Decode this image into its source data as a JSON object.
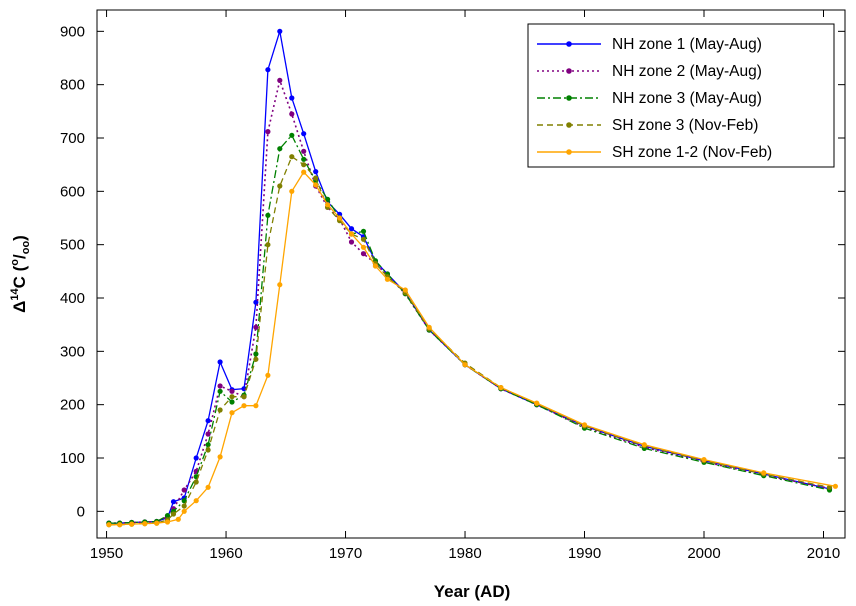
{
  "chart_data": {
    "type": "line",
    "title": "",
    "xlabel": "Year (AD)",
    "ylabel": {
      "delta": "Δ",
      "sup": "14",
      "main": "C (",
      "sup2": "o",
      "slash": "/",
      "sub": "oo",
      "close": ")"
    },
    "xlim": [
      1949.2,
      2011.8
    ],
    "ylim": [
      -50,
      940
    ],
    "xticks": [
      1950,
      1960,
      1970,
      1980,
      1990,
      2000,
      2010
    ],
    "yticks": [
      0,
      100,
      200,
      300,
      400,
      500,
      600,
      700,
      800,
      900
    ],
    "grid": false,
    "legend_position": "top-right",
    "series": [
      {
        "name": "NH zone 1 (May-Aug)",
        "color": "#0000ff",
        "dash": "solid",
        "marker": "#0000ff",
        "points": [
          [
            1950.2,
            -22
          ],
          [
            1951.1,
            -22
          ],
          [
            1952.1,
            -21
          ],
          [
            1953.2,
            -20
          ],
          [
            1954.2,
            -19
          ],
          [
            1955.1,
            -12
          ],
          [
            1955.6,
            18
          ],
          [
            1956.5,
            25
          ],
          [
            1957.5,
            100
          ],
          [
            1958.5,
            170
          ],
          [
            1959.5,
            280
          ],
          [
            1960.5,
            228
          ],
          [
            1961.5,
            230
          ],
          [
            1962.5,
            392
          ],
          [
            1963.5,
            828
          ],
          [
            1964.5,
            900
          ],
          [
            1965.5,
            775
          ],
          [
            1966.5,
            708
          ],
          [
            1967.5,
            637
          ],
          [
            1968.5,
            580
          ],
          [
            1969.5,
            557
          ],
          [
            1970.5,
            530
          ],
          [
            1971.5,
            515
          ],
          [
            1972.5,
            469
          ],
          [
            1973.5,
            445
          ],
          [
            1975,
            410
          ],
          [
            1977,
            340
          ],
          [
            1980,
            275
          ],
          [
            1983,
            230
          ],
          [
            1986,
            200
          ],
          [
            1990,
            160
          ],
          [
            1995,
            122
          ],
          [
            2000,
            95
          ],
          [
            2005,
            70
          ],
          [
            2010.5,
            42
          ]
        ]
      },
      {
        "name": "NH zone 2 (May-Aug)",
        "color": "#800080",
        "dash": "dotted",
        "marker": "#800080",
        "points": [
          [
            1950.2,
            -22
          ],
          [
            1951.1,
            -22
          ],
          [
            1952.1,
            -21
          ],
          [
            1953.2,
            -20
          ],
          [
            1954.2,
            -19
          ],
          [
            1955.1,
            -10
          ],
          [
            1955.6,
            5
          ],
          [
            1956.5,
            40
          ],
          [
            1957.5,
            75
          ],
          [
            1958.5,
            145
          ],
          [
            1959.5,
            235
          ],
          [
            1960.5,
            225
          ],
          [
            1961.5,
            215
          ],
          [
            1962.5,
            345
          ],
          [
            1963.5,
            712
          ],
          [
            1964.5,
            808
          ],
          [
            1965.5,
            745
          ],
          [
            1966.5,
            675
          ],
          [
            1967.5,
            610
          ],
          [
            1968.5,
            570
          ],
          [
            1969.5,
            548
          ],
          [
            1970.5,
            505
          ],
          [
            1971.5,
            483
          ],
          [
            1972.5,
            465
          ],
          [
            1973.5,
            442
          ],
          [
            1975,
            408
          ],
          [
            1977,
            340
          ],
          [
            1980,
            275
          ],
          [
            1983,
            230
          ],
          [
            1986,
            200
          ],
          [
            1990,
            158
          ],
          [
            1995,
            120
          ],
          [
            2000,
            93
          ],
          [
            2005,
            68
          ],
          [
            2010.5,
            43
          ]
        ]
      },
      {
        "name": "NH zone 3 (May-Aug)",
        "color": "#008000",
        "dash": "dashdot",
        "marker": "#008000",
        "points": [
          [
            1950.2,
            -22
          ],
          [
            1951.1,
            -22
          ],
          [
            1952.1,
            -21
          ],
          [
            1953.2,
            -20
          ],
          [
            1954.2,
            -19
          ],
          [
            1955.1,
            -8
          ],
          [
            1955.6,
            0
          ],
          [
            1956.5,
            20
          ],
          [
            1957.5,
            65
          ],
          [
            1958.5,
            125
          ],
          [
            1959.5,
            225
          ],
          [
            1960.5,
            205
          ],
          [
            1961.5,
            218
          ],
          [
            1962.5,
            295
          ],
          [
            1963.5,
            555
          ],
          [
            1964.5,
            680
          ],
          [
            1965.5,
            705
          ],
          [
            1966.5,
            660
          ],
          [
            1967.5,
            620
          ],
          [
            1968.5,
            585
          ],
          [
            1969.5,
            550
          ],
          [
            1970.5,
            520
          ],
          [
            1971.5,
            525
          ],
          [
            1972.5,
            470
          ],
          [
            1973.5,
            445
          ],
          [
            1975,
            408
          ],
          [
            1977,
            340
          ],
          [
            1980,
            275
          ],
          [
            1983,
            230
          ],
          [
            1986,
            200
          ],
          [
            1990,
            156
          ],
          [
            1995,
            118
          ],
          [
            2000,
            92
          ],
          [
            2005,
            67
          ],
          [
            2010.5,
            40
          ]
        ]
      },
      {
        "name": "SH zone 3 (Nov-Feb)",
        "color": "#808000",
        "dash": "dashed",
        "marker": "#808000",
        "points": [
          [
            1950.2,
            -25
          ],
          [
            1951.1,
            -25
          ],
          [
            1952.1,
            -24
          ],
          [
            1953.2,
            -23
          ],
          [
            1954.2,
            -22
          ],
          [
            1955.1,
            -16
          ],
          [
            1955.6,
            -5
          ],
          [
            1956.5,
            10
          ],
          [
            1957.5,
            55
          ],
          [
            1958.5,
            115
          ],
          [
            1959.5,
            190
          ],
          [
            1960.5,
            215
          ],
          [
            1961.5,
            215
          ],
          [
            1962.5,
            285
          ],
          [
            1963.5,
            500
          ],
          [
            1964.5,
            610
          ],
          [
            1965.5,
            665
          ],
          [
            1966.5,
            650
          ],
          [
            1967.5,
            625
          ],
          [
            1968.5,
            570
          ],
          [
            1969.5,
            545
          ],
          [
            1970.5,
            520
          ],
          [
            1971.5,
            510
          ],
          [
            1972.5,
            465
          ],
          [
            1973.5,
            440
          ],
          [
            1975,
            410
          ],
          [
            1977,
            342
          ],
          [
            1980,
            278
          ],
          [
            1983,
            232
          ],
          [
            1986,
            202
          ],
          [
            1990,
            160
          ],
          [
            1995,
            123
          ],
          [
            2000,
            95
          ],
          [
            2005,
            70
          ],
          [
            2010.5,
            45
          ]
        ]
      },
      {
        "name": "SH zone 1-2 (Nov-Feb)",
        "color": "#ffa500",
        "dash": "solid",
        "marker": "#ffa500",
        "points": [
          [
            1950.2,
            -25
          ],
          [
            1951.1,
            -25
          ],
          [
            1952.1,
            -24
          ],
          [
            1953.2,
            -23
          ],
          [
            1954.2,
            -22
          ],
          [
            1955.1,
            -20
          ],
          [
            1956.0,
            -15
          ],
          [
            1956.5,
            0
          ],
          [
            1957.5,
            20
          ],
          [
            1958.5,
            45
          ],
          [
            1959.5,
            102
          ],
          [
            1960.5,
            185
          ],
          [
            1961.5,
            198
          ],
          [
            1962.5,
            198
          ],
          [
            1963.5,
            255
          ],
          [
            1964.5,
            425
          ],
          [
            1965.5,
            600
          ],
          [
            1966.5,
            636
          ],
          [
            1967.5,
            612
          ],
          [
            1968.5,
            575
          ],
          [
            1969.5,
            550
          ],
          [
            1970.5,
            520
          ],
          [
            1971.5,
            495
          ],
          [
            1972.5,
            460
          ],
          [
            1973.5,
            435
          ],
          [
            1975,
            415
          ],
          [
            1977,
            345
          ],
          [
            1980,
            275
          ],
          [
            1983,
            232
          ],
          [
            1986,
            203
          ],
          [
            1990,
            162
          ],
          [
            1995,
            125
          ],
          [
            2000,
            97
          ],
          [
            2005,
            72
          ],
          [
            2011,
            47
          ]
        ]
      }
    ]
  }
}
